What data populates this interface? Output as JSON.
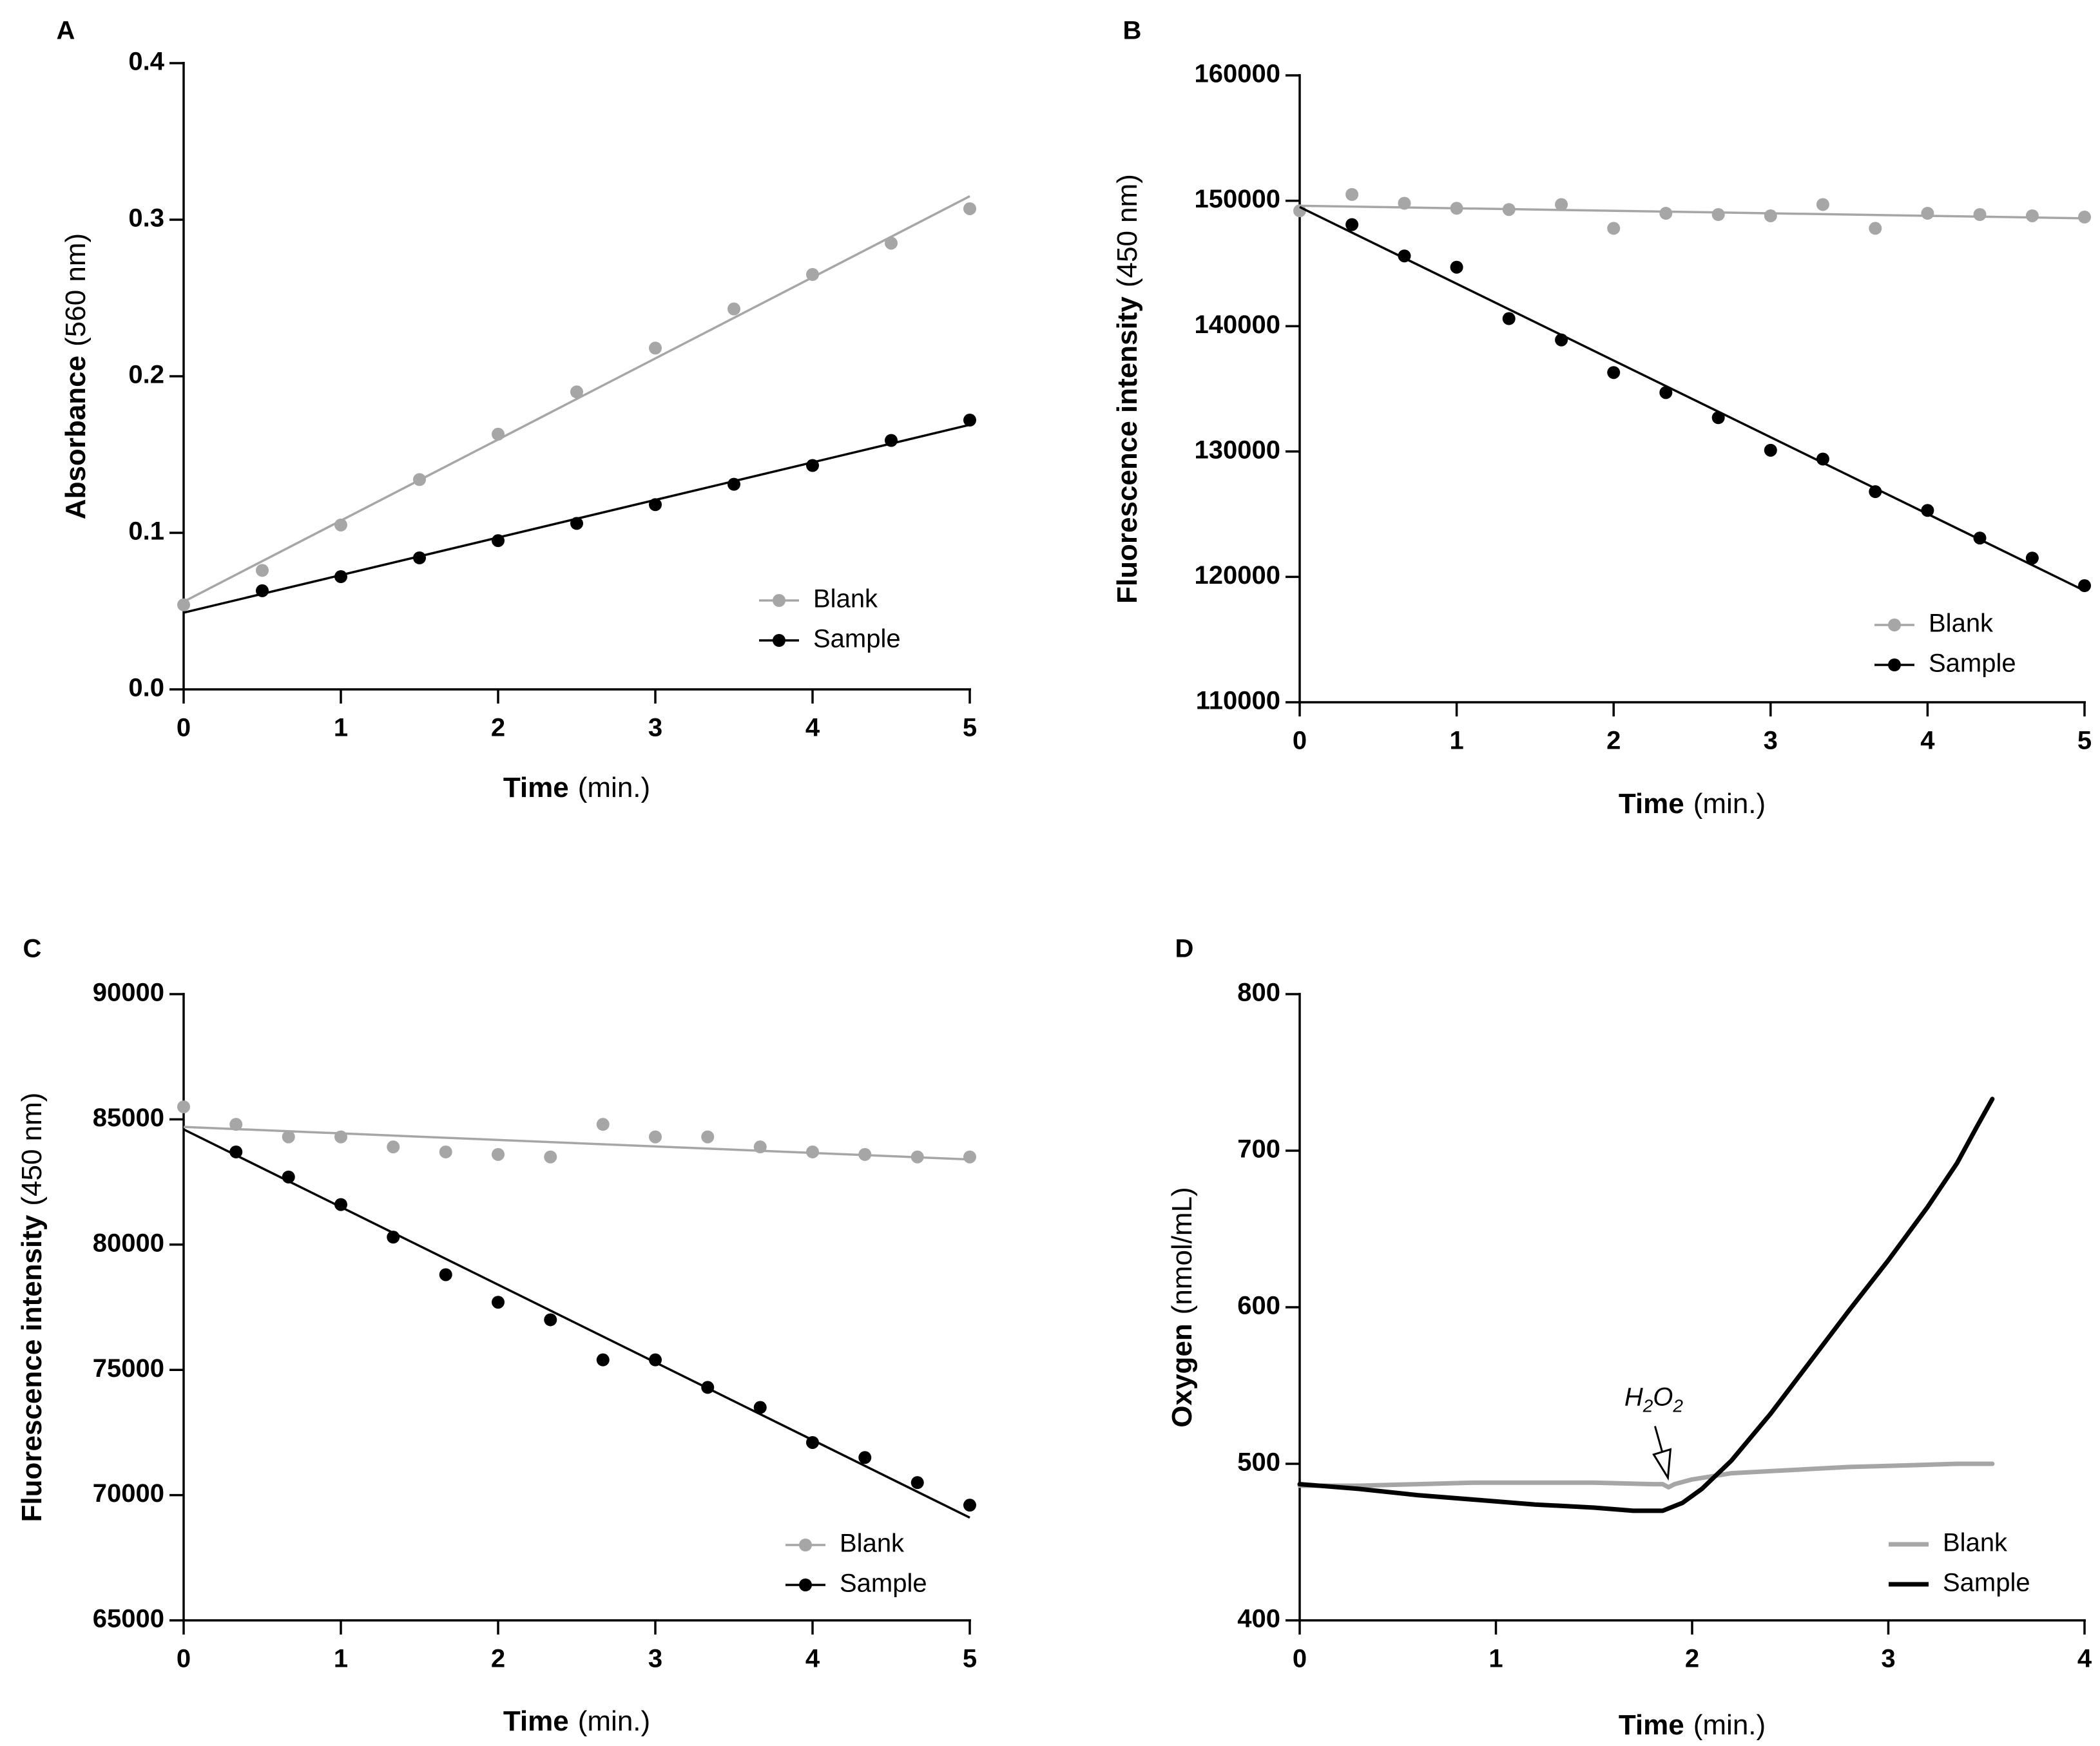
{
  "colors": {
    "blank": "#a6a6a6",
    "sample": "#000000"
  },
  "chart_data": [
    {
      "panel_label": "A",
      "type": "scatter",
      "xlabel_bold": "Time",
      "xlabel_unit": "(min.)",
      "ylabel_bold": "Absorbance",
      "ylabel_unit": "(560 nm)",
      "xlim": [
        0,
        5
      ],
      "ylim": [
        0.0,
        0.4
      ],
      "xticks": [
        "0",
        "1",
        "2",
        "3",
        "4",
        "5"
      ],
      "yticks": [
        "0.0",
        "0.1",
        "0.2",
        "0.3",
        "0.4"
      ],
      "legend": [
        "Blank",
        "Sample"
      ],
      "series": [
        {
          "name": "Blank",
          "x": [
            0,
            0.5,
            1,
            1.5,
            2,
            2.5,
            3,
            3.5,
            4,
            4.5,
            5
          ],
          "y": [
            0.054,
            0.076,
            0.105,
            0.134,
            0.163,
            0.19,
            0.218,
            0.243,
            0.265,
            0.285,
            0.307
          ],
          "fit": [
            [
              0,
              0.056
            ],
            [
              5,
              0.315
            ]
          ]
        },
        {
          "name": "Sample",
          "x": [
            0.5,
            1,
            1.5,
            2,
            2.5,
            3,
            3.5,
            4,
            4.5,
            5
          ],
          "y": [
            0.063,
            0.072,
            0.084,
            0.095,
            0.106,
            0.118,
            0.131,
            0.143,
            0.159,
            0.172
          ],
          "fit": [
            [
              0,
              0.049
            ],
            [
              5,
              0.169
            ]
          ]
        }
      ]
    },
    {
      "panel_label": "B",
      "type": "scatter",
      "xlabel_bold": "Time",
      "xlabel_unit": "(min.)",
      "ylabel_bold": "Fluorescence intensity",
      "ylabel_unit": "(450 nm)",
      "xlim": [
        0,
        5
      ],
      "ylim": [
        110000,
        160000
      ],
      "xticks": [
        "0",
        "1",
        "2",
        "3",
        "4",
        "5"
      ],
      "yticks": [
        "110000",
        "120000",
        "130000",
        "140000",
        "150000",
        "160000"
      ],
      "legend": [
        "Blank",
        "Sample"
      ],
      "series": [
        {
          "name": "Blank",
          "x": [
            0,
            0.333,
            0.667,
            1,
            1.333,
            1.667,
            2,
            2.333,
            2.667,
            3,
            3.333,
            3.667,
            4,
            4.333,
            4.667,
            5
          ],
          "y": [
            149200,
            150500,
            149800,
            149400,
            149300,
            149700,
            147800,
            149000,
            148900,
            148800,
            149700,
            147800,
            149000,
            148900,
            148800,
            148700
          ],
          "fit": [
            [
              0,
              149600
            ],
            [
              5,
              148600
            ]
          ]
        },
        {
          "name": "Sample",
          "x": [
            0.333,
            0.667,
            1,
            1.333,
            1.667,
            2,
            2.333,
            2.667,
            3,
            3.333,
            3.667,
            4,
            4.333,
            4.667,
            5
          ],
          "y": [
            148100,
            145600,
            144700,
            140600,
            138900,
            136300,
            134700,
            132700,
            130100,
            129400,
            126800,
            125300,
            123100,
            121500,
            119300
          ],
          "fit": [
            [
              0,
              149500
            ],
            [
              5,
              118900
            ]
          ]
        }
      ]
    },
    {
      "panel_label": "C",
      "type": "scatter",
      "xlabel_bold": "Time",
      "xlabel_unit": "(min.)",
      "ylabel_bold": "Fluorescence intensity",
      "ylabel_unit": "(450 nm)",
      "xlim": [
        0,
        5
      ],
      "ylim": [
        65000,
        90000
      ],
      "xticks": [
        "0",
        "1",
        "2",
        "3",
        "4",
        "5"
      ],
      "yticks": [
        "65000",
        "70000",
        "75000",
        "80000",
        "85000",
        "90000"
      ],
      "legend": [
        "Blank",
        "Sample"
      ],
      "series": [
        {
          "name": "Blank",
          "x": [
            0,
            0.333,
            0.667,
            1,
            1.333,
            1.667,
            2,
            2.333,
            2.667,
            3,
            3.333,
            3.667,
            4,
            4.333,
            4.667,
            5
          ],
          "y": [
            85500,
            84800,
            84300,
            84300,
            83900,
            83700,
            83600,
            83500,
            84800,
            84300,
            84300,
            83900,
            83700,
            83600,
            83500,
            83500
          ],
          "fit": [
            [
              0,
              84700
            ],
            [
              5,
              83400
            ]
          ]
        },
        {
          "name": "Sample",
          "x": [
            0.333,
            0.667,
            1,
            1.333,
            1.667,
            2,
            2.333,
            2.667,
            3,
            3.333,
            3.667,
            4,
            4.333,
            4.667,
            5
          ],
          "y": [
            83700,
            82700,
            81600,
            80300,
            78800,
            77700,
            77000,
            75400,
            75400,
            74300,
            73500,
            72100,
            71500,
            70500,
            69600
          ],
          "fit": [
            [
              0,
              84600
            ],
            [
              5,
              69100
            ]
          ]
        }
      ]
    },
    {
      "panel_label": "D",
      "type": "line",
      "xlabel_bold": "Time",
      "xlabel_unit": "(min.)",
      "ylabel_bold": "Oxygen",
      "ylabel_unit": "(nmol/mL)",
      "xlim": [
        0,
        4
      ],
      "ylim": [
        400,
        800
      ],
      "xticks": [
        "0",
        "1",
        "2",
        "3",
        "4"
      ],
      "yticks": [
        "400",
        "500",
        "600",
        "700",
        "800"
      ],
      "legend": [
        "Blank",
        "Sample"
      ],
      "annotation": {
        "text_main": "H",
        "sub1": "2",
        "mid": "O",
        "sub2": "2",
        "x": 1.87,
        "y": 487
      },
      "series": [
        {
          "name": "Blank",
          "x": [
            0,
            0.3,
            0.6,
            0.9,
            1.2,
            1.5,
            1.8,
            1.85,
            1.88,
            1.91,
            2.0,
            2.2,
            2.5,
            2.8,
            3.1,
            3.35,
            3.53
          ],
          "y": [
            486,
            486,
            487,
            488,
            488,
            488,
            487,
            487,
            485,
            487,
            490,
            494,
            496,
            498,
            499,
            500,
            500
          ]
        },
        {
          "name": "Sample",
          "x": [
            0,
            0.3,
            0.6,
            0.9,
            1.2,
            1.5,
            1.7,
            1.85,
            1.95,
            2.05,
            2.2,
            2.4,
            2.6,
            2.8,
            3.0,
            3.2,
            3.35,
            3.45,
            3.53
          ],
          "y": [
            487,
            484,
            480,
            477,
            474,
            472,
            470,
            470,
            475,
            484,
            502,
            532,
            565,
            598,
            630,
            664,
            692,
            715,
            733
          ]
        }
      ]
    }
  ]
}
